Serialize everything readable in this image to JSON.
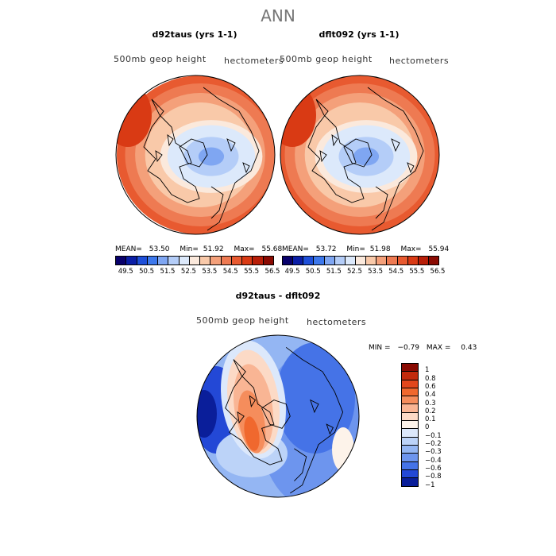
{
  "main_title": "ANN",
  "chart_data": [
    {
      "type": "heatmap",
      "title": "d92taus (yrs 1-1)",
      "subtitle_left": "500mb geop height",
      "subtitle_right": "hectometers",
      "projection": "polar-stereographic north",
      "stats": {
        "mean_label": "MEAN=",
        "mean": "53.50",
        "min_label": "Min=",
        "min": "51.92",
        "max_label": "Max=",
        "max": "55.68"
      },
      "colorbar_ticks": [
        "49.5",
        "50.5",
        "51.5",
        "52.5",
        "53.5",
        "54.5",
        "55.5",
        "56.5"
      ]
    },
    {
      "type": "heatmap",
      "title": "dflt092 (yrs 1-1)",
      "subtitle_left": "500mb geop height",
      "subtitle_right": "hectometers",
      "projection": "polar-stereographic north",
      "stats": {
        "mean_label": "MEAN=",
        "mean": "53.72",
        "min_label": "Min=",
        "min": "51.98",
        "max_label": "Max=",
        "max": "55.94"
      },
      "colorbar_ticks": [
        "49.5",
        "50.5",
        "51.5",
        "52.5",
        "53.5",
        "54.5",
        "55.5",
        "56.5"
      ]
    },
    {
      "type": "heatmap",
      "title": "d92taus - dflt092",
      "subtitle_left": "500mb geop height",
      "subtitle_right": "hectometers",
      "projection": "polar-stereographic north",
      "stats": {
        "min_label": "MIN =",
        "min": "−0.79",
        "max_label": "MAX =",
        "max": "0.43"
      },
      "colorbar_ticks": [
        "1",
        "0.8",
        "0.6",
        "0.4",
        "0.3",
        "0.2",
        "0.1",
        "0",
        "−0.1",
        "−0.2",
        "−0.3",
        "−0.4",
        "−0.6",
        "−0.8",
        "−1"
      ]
    }
  ],
  "colors": {
    "abs_scale": [
      "#08006b",
      "#0a1ea6",
      "#1e4fd9",
      "#3d78ec",
      "#7fa6f2",
      "#b4cdf8",
      "#dce9fb",
      "#fbe9dc",
      "#f9c9a9",
      "#f4a07a",
      "#ee7a52",
      "#e85a30",
      "#d93a14",
      "#b81e08",
      "#8a0a02"
    ],
    "diff_scale": [
      "#8a0a02",
      "#c22a0c",
      "#e2471c",
      "#f0682e",
      "#f58d5c",
      "#f9b594",
      "#fcdac6",
      "#fdf3ea",
      "#dce8fb",
      "#bcd3f8",
      "#94b6f3",
      "#6d95ee",
      "#4573e7",
      "#2348d6",
      "#0a1e9a"
    ],
    "land_outline": "#000000"
  }
}
